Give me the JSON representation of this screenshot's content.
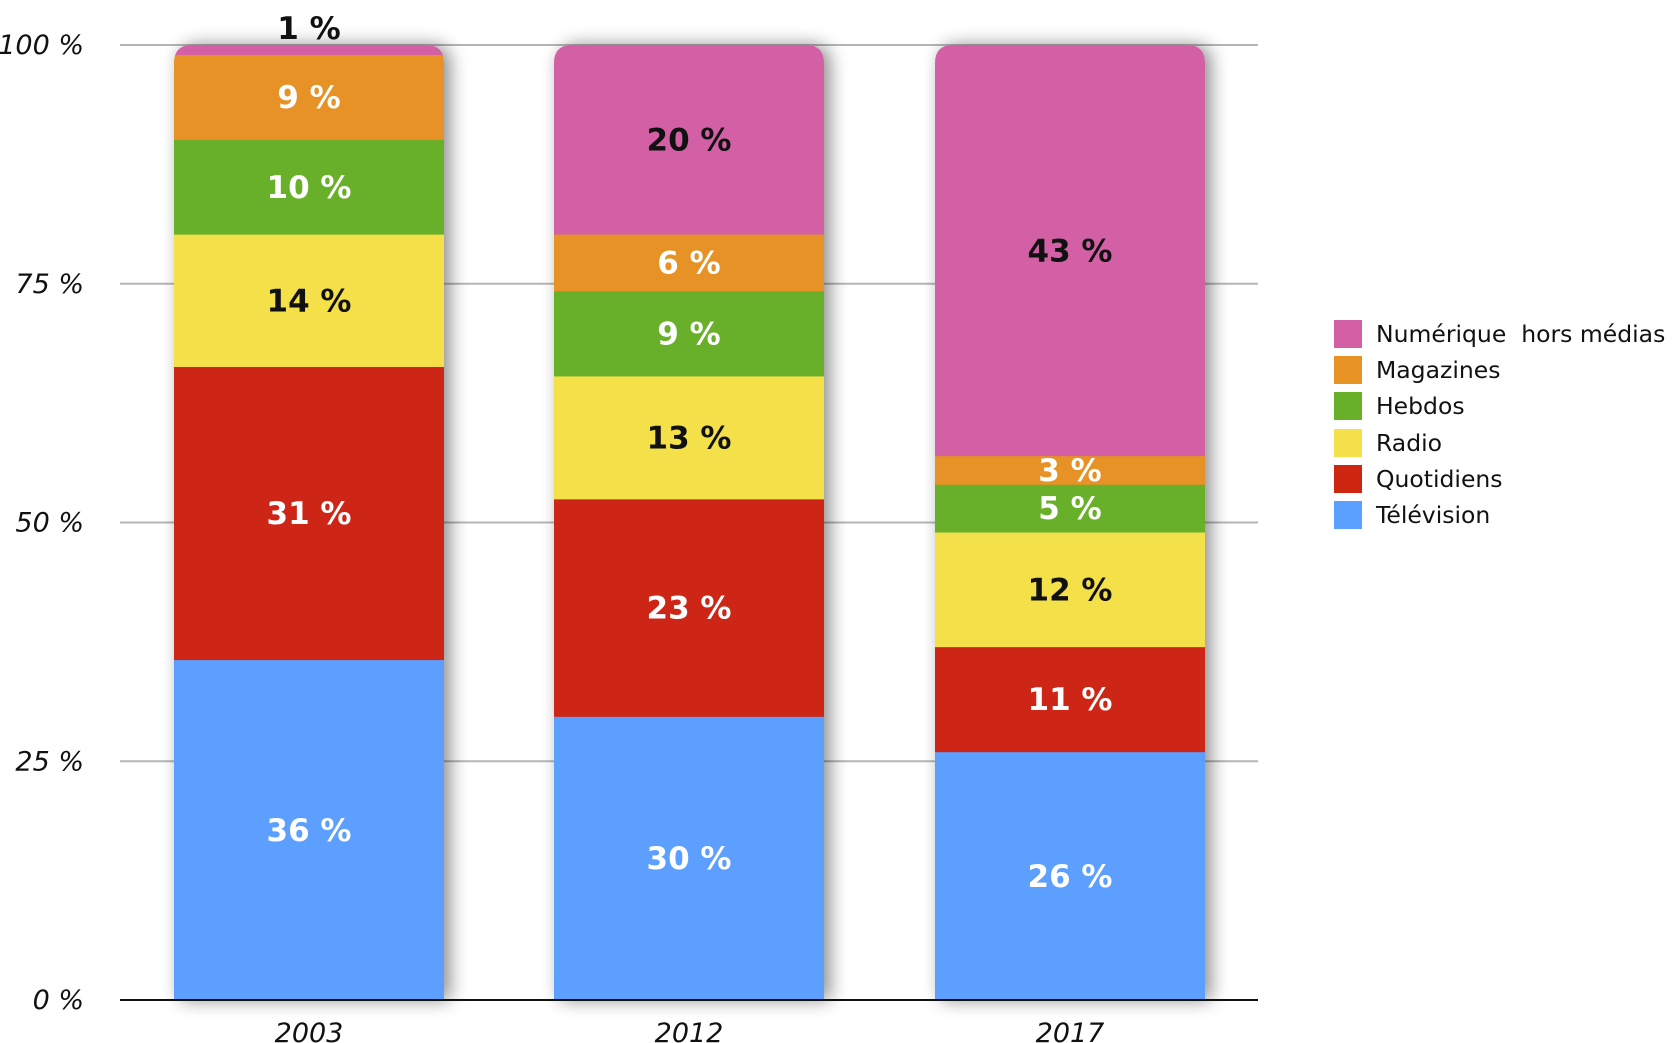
{
  "chart_data": {
    "type": "bar",
    "stacked": true,
    "categories": [
      "2003",
      "2012",
      "2017"
    ],
    "ylim": [
      0,
      100
    ],
    "yticks": [
      "0 %",
      "25 %",
      "50 %",
      "75 %",
      "100 %"
    ],
    "grid": true,
    "legend_position": "right",
    "series": [
      {
        "name": "Télévision",
        "color": "#5B9FFF",
        "label_color": "#ffffff",
        "values": [
          36,
          30,
          26
        ],
        "labels": [
          "36 %",
          "30 %",
          "26 %"
        ]
      },
      {
        "name": "Quotidiens",
        "color": "#CD2712",
        "label_color": "#ffffff",
        "values": [
          31,
          23,
          11
        ],
        "labels": [
          "31 %",
          "23 %",
          "11 %"
        ]
      },
      {
        "name": "Radio",
        "color": "#F4E04A",
        "label_color": "#111111",
        "values": [
          14,
          13,
          12
        ],
        "labels": [
          "14 %",
          "13 %",
          "12 %"
        ]
      },
      {
        "name": "Hebdos",
        "color": "#68AF2A",
        "label_color": "#ffffff",
        "values": [
          10,
          9,
          5
        ],
        "labels": [
          "10 %",
          "9 %",
          "5 %"
        ]
      },
      {
        "name": "Magazines",
        "color": "#E69225",
        "label_color": "#ffffff",
        "values": [
          9,
          6,
          3
        ],
        "labels": [
          "9 %",
          "6 %",
          "3 %"
        ]
      },
      {
        "name": "Numérique  hors médias",
        "color": "#D360A5",
        "label_color": "#111111",
        "values": [
          1,
          20,
          43
        ],
        "labels": [
          "1 %",
          "20 %",
          "43 %"
        ]
      }
    ]
  }
}
